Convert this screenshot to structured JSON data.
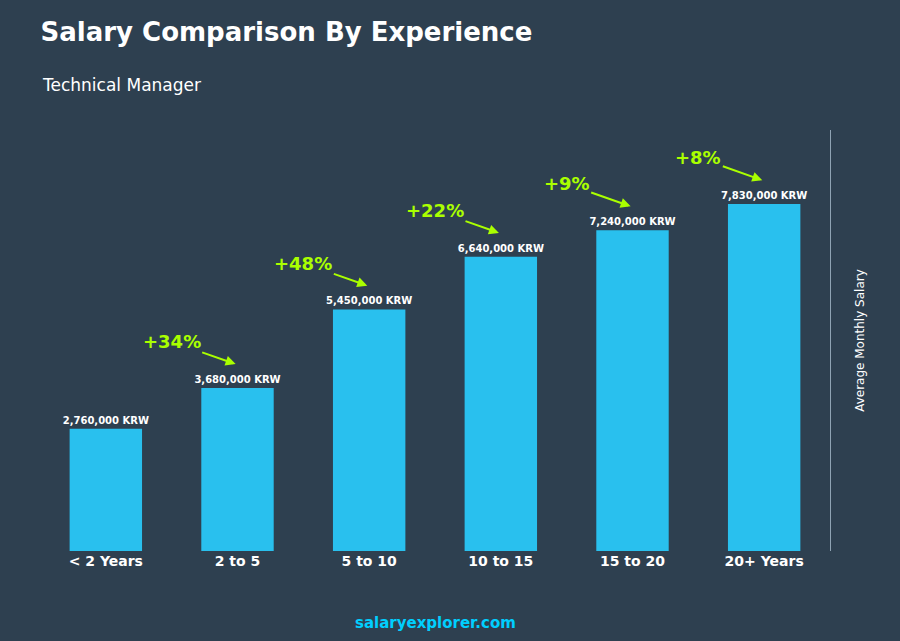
{
  "chart_data": {
    "type": "bar",
    "title": "Salary Comparison By Experience",
    "subtitle": "Technical Manager",
    "ylabel": "Average Monthly Salary",
    "categories": [
      "< 2 Years",
      "2 to 5",
      "5 to 10",
      "10 to 15",
      "15 to 20",
      "20+ Years"
    ],
    "values": [
      2760000,
      3680000,
      5450000,
      6640000,
      7240000,
      7830000
    ],
    "value_labels": [
      "2,760,000 KRW",
      "3,680,000 KRW",
      "5,450,000 KRW",
      "6,640,000 KRW",
      "7,240,000 KRW",
      "7,830,000 KRW"
    ],
    "data_labels": true,
    "annotations": [
      null,
      "+34%",
      "+48%",
      "+22%",
      "+9%",
      "+8%"
    ],
    "footer": "salaryexplorer.com",
    "color": "#29c0ee",
    "ylim": [
      0,
      9500000
    ],
    "grid": false,
    "tick_labels": "x"
  }
}
